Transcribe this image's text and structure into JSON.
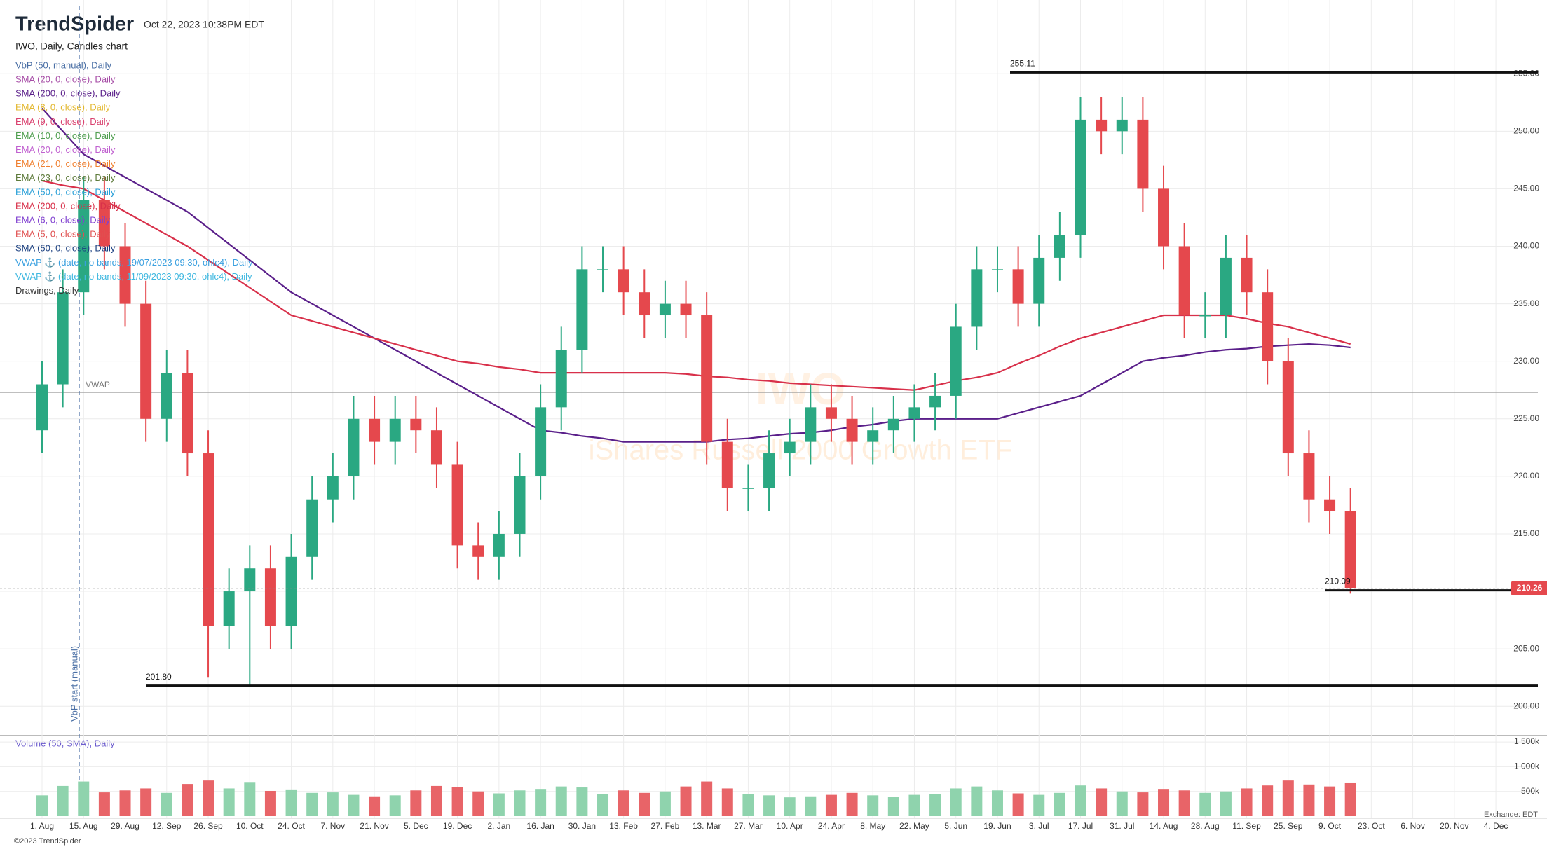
{
  "header": {
    "logo": "TrendSpider",
    "timestamp": "Oct 22, 2023 10:38PM EDT"
  },
  "footer": {
    "copyright": "©2023 TrendSpider",
    "exchange": "Exchange: EDT"
  },
  "chart_data": {
    "type": "candlestick",
    "title": "IWO, Daily, Candles chart",
    "watermark": {
      "symbol": "IWO",
      "name": "iShares Russell 2000 Growth ETF"
    },
    "categories": [
      "1. Aug",
      null,
      "15. Aug",
      null,
      "29. Aug",
      null,
      "12. Sep",
      null,
      "26. Sep",
      null,
      "10. Oct",
      null,
      "24. Oct",
      null,
      "7. Nov",
      null,
      "21. Nov",
      null,
      "5. Dec",
      null,
      "19. Dec",
      null,
      "2. Jan",
      null,
      "16. Jan",
      null,
      "30. Jan",
      null,
      "13. Feb",
      null,
      "27. Feb",
      null,
      "13. Mar",
      null,
      "27. Mar",
      null,
      "10. Apr",
      null,
      "24. Apr",
      null,
      "8. May",
      null,
      "22. May",
      null,
      "5. Jun",
      null,
      "19. Jun",
      null,
      "3. Jul",
      null,
      "17. Jul",
      null,
      "31. Jul",
      null,
      "14. Aug",
      null,
      "28. Aug",
      null,
      "11. Sep",
      null,
      "25. Sep",
      null,
      "9. Oct",
      null,
      "23. Oct",
      null,
      "6. Nov",
      null,
      "20. Nov",
      null,
      "4. Dec"
    ],
    "open": [
      224,
      228,
      236,
      244,
      240,
      235,
      225,
      229,
      222,
      207,
      210,
      212,
      207,
      213,
      218,
      220,
      225,
      223,
      225,
      224,
      221,
      214,
      213,
      215,
      220,
      226,
      231,
      238,
      238,
      236,
      234,
      235,
      234,
      223,
      219,
      219,
      222,
      223,
      226,
      225,
      223,
      224,
      225,
      226,
      227,
      233,
      238,
      238,
      235,
      239,
      241,
      251,
      250,
      251,
      245,
      240,
      234,
      234,
      239,
      236,
      230,
      222,
      218,
      217,
      null,
      null,
      null,
      null,
      null,
      null,
      null
    ],
    "high": [
      230,
      238,
      246,
      246,
      242,
      237,
      231,
      231,
      224,
      212,
      214,
      214,
      215,
      220,
      222,
      227,
      227,
      227,
      227,
      226,
      223,
      216,
      217,
      222,
      228,
      233,
      240,
      240,
      240,
      238,
      237,
      237,
      236,
      225,
      221,
      224,
      225,
      228,
      228,
      227,
      226,
      227,
      228,
      229,
      235,
      240,
      240,
      240,
      241,
      243,
      253,
      253,
      253,
      253,
      247,
      242,
      236,
      241,
      241,
      238,
      232,
      224,
      220,
      219,
      null,
      null,
      null,
      null,
      null,
      null,
      null
    ],
    "low": [
      222,
      226,
      234,
      238,
      233,
      223,
      223,
      220,
      202.5,
      205,
      201.8,
      205,
      205,
      211,
      216,
      218,
      221,
      221,
      222,
      219,
      212,
      211,
      211,
      213,
      218,
      224,
      229,
      236,
      234,
      232,
      232,
      232,
      221,
      217,
      217,
      217,
      220,
      221,
      223,
      221,
      221,
      222,
      223,
      224,
      225,
      231,
      236,
      233,
      233,
      237,
      239,
      248,
      248,
      243,
      238,
      232,
      232,
      232,
      234,
      228,
      220,
      216,
      215,
      209.8,
      null,
      null,
      null,
      null,
      null,
      null,
      null
    ],
    "close": [
      228,
      236,
      244,
      240,
      235,
      225,
      229,
      222,
      207,
      210,
      212,
      207,
      213,
      218,
      220,
      225,
      223,
      225,
      224,
      221,
      214,
      213,
      215,
      220,
      226,
      231,
      238,
      238,
      236,
      234,
      235,
      234,
      223,
      219,
      219,
      222,
      223,
      226,
      225,
      223,
      224,
      225,
      226,
      227,
      233,
      238,
      238,
      235,
      239,
      241,
      251,
      250,
      251,
      245,
      240,
      234,
      234,
      239,
      236,
      230,
      222,
      218,
      217,
      210.26,
      null,
      null,
      null,
      null,
      null,
      null,
      null
    ],
    "up_color": "#2aa882",
    "down_color": "#e5484d",
    "ylim": [
      197.7,
      260.8
    ],
    "yticks": [
      {
        "value": 200,
        "label": "200.00"
      },
      {
        "value": 205,
        "label": "205.00"
      },
      {
        "value": 210,
        "label": "210.00"
      },
      {
        "value": 215,
        "label": "215.00"
      },
      {
        "value": 220,
        "label": "220.00"
      },
      {
        "value": 225,
        "label": "225.00"
      },
      {
        "value": 230,
        "label": "230.00"
      },
      {
        "value": 235,
        "label": "235.00"
      },
      {
        "value": 240,
        "label": "240.00"
      },
      {
        "value": 245,
        "label": "245.00"
      },
      {
        "value": 250,
        "label": "250.00"
      },
      {
        "value": 255,
        "label": "255.00"
      }
    ],
    "grid": true,
    "levels": [
      255.11,
      {
        "value": 201.8,
        "label": "201.80"
      },
      210.09
    ],
    "vwap": {
      "label": "VWAP",
      "value": 227.3
    },
    "vbp_start": "VbP start (manual)",
    "series": [
      {
        "name": "VbP (50, manual), Daily",
        "color": "#4a6fa5"
      },
      {
        "name": "SMA (20, 0, close), Daily",
        "color": "#a64ca6"
      },
      {
        "name": "SMA (200, 0, close), Daily",
        "color": "#5a1f8a",
        "values": [
          252,
          250,
          248,
          247,
          246,
          245,
          244,
          243,
          241.6,
          240.2,
          238.8,
          237.4,
          236,
          235,
          234,
          233,
          232,
          231,
          230,
          229,
          228,
          227,
          226,
          225,
          224,
          223.8,
          223.5,
          223.3,
          223,
          223,
          223,
          223,
          223,
          223.2,
          223.3,
          223.5,
          223.7,
          223.8,
          224,
          224.3,
          224.5,
          224.8,
          225,
          225,
          225,
          225,
          225,
          225.5,
          226,
          226.5,
          227,
          228,
          229,
          230,
          230.3,
          230.5,
          230.8,
          231,
          231.1,
          231.3,
          231.4,
          231.5,
          231.4,
          231.2,
          null,
          null,
          null,
          null,
          null,
          null,
          null
        ]
      },
      {
        "name": "EMA (8, 0, close), Daily",
        "color": "#e3b830"
      },
      {
        "name": "EMA (9, 0, close), Daily",
        "color": "#d9406e"
      },
      {
        "name": "EMA (10, 0, close), Daily",
        "color": "#4f9e4f"
      },
      {
        "name": "EMA (20, 0, close), Daily",
        "color": "#c060d0"
      },
      {
        "name": "EMA (21, 0, close), Daily",
        "color": "#f08030"
      },
      {
        "name": "EMA (23, 0, close), Daily",
        "color": "#5d7a3a"
      },
      {
        "name": "EMA (50, 0, close), Daily",
        "color": "#2aa0d8"
      },
      {
        "name": "EMA (200, 0, close), Daily",
        "color": "#d8304a",
        "values": [
          245.7,
          245.3,
          245,
          244,
          243,
          242,
          241,
          240,
          238.8,
          237.6,
          236.4,
          235.2,
          234,
          233.5,
          233,
          232.5,
          232,
          231.5,
          231,
          230.5,
          230,
          229.8,
          229.5,
          229.3,
          229,
          229,
          229,
          229,
          229,
          229,
          229,
          228.9,
          228.7,
          228.6,
          228.4,
          228.3,
          228.1,
          228,
          227.9,
          227.8,
          227.7,
          227.6,
          227.5,
          227.9,
          228.3,
          228.6,
          229,
          229.8,
          230.5,
          231.3,
          232,
          232.5,
          233,
          233.5,
          234,
          234,
          234,
          234,
          233.7,
          233.3,
          233,
          232.5,
          232,
          231.5,
          null,
          null,
          null,
          null,
          null,
          null,
          null
        ]
      },
      {
        "name": "EMA (6, 0, close), Daily",
        "color": "#8040d0"
      },
      {
        "name": "EMA (5, 0, close), Daily",
        "color": "#e05050"
      },
      {
        "name": "SMA (50, 0, close), Daily",
        "color": "#1a3f80"
      },
      {
        "name": "VWAP ⚓ (date, no bands, 19/07/2023 09:30, ohlc4), Daily",
        "color": "#3aa0e0"
      },
      {
        "name": "VWAP ⚓ (date, no bands, 11/09/2023 09:30, ohlc4), Daily",
        "color": "#40b8e0"
      },
      {
        "name": "Drawings, Daily",
        "color": "#333333"
      }
    ],
    "volume": {
      "name": "Volume (50, SMA), Daily",
      "color": "#6a5acd",
      "up_color": "#8fd3ad",
      "down_color": "#e86468",
      "values": [
        420000,
        610000,
        700000,
        480000,
        520000,
        560000,
        470000,
        650000,
        720000,
        560000,
        690000,
        510000,
        540000,
        470000,
        480000,
        430000,
        400000,
        420000,
        520000,
        610000,
        590000,
        500000,
        460000,
        520000,
        550000,
        600000,
        580000,
        450000,
        520000,
        470000,
        500000,
        600000,
        700000,
        560000,
        450000,
        420000,
        380000,
        400000,
        430000,
        470000,
        420000,
        390000,
        430000,
        450000,
        560000,
        600000,
        520000,
        460000,
        430000,
        470000,
        620000,
        560000,
        500000,
        480000,
        550000,
        520000,
        470000,
        500000,
        560000,
        620000,
        720000,
        640000,
        600000,
        680000,
        null,
        null,
        null,
        null,
        null,
        null,
        null
      ],
      "ylim": [
        0,
        1600000
      ],
      "yticks": [
        {
          "value": 500000,
          "label": "500k"
        },
        {
          "value": 1000000,
          "label": "1 000k"
        },
        {
          "value": 1500000,
          "label": "1 500k"
        }
      ]
    }
  }
}
